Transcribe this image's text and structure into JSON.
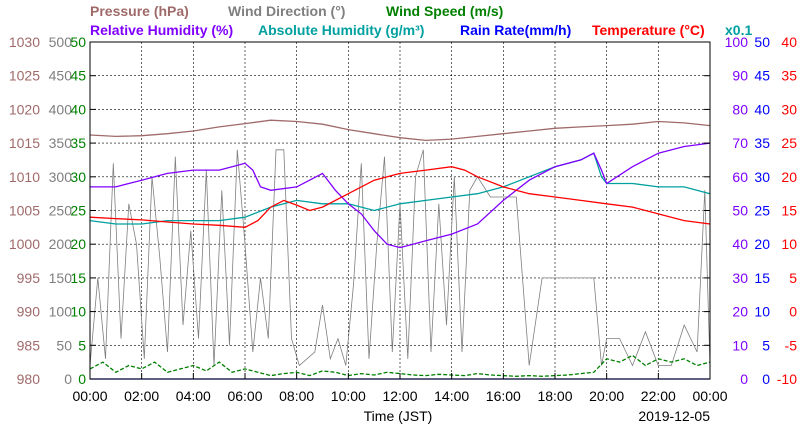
{
  "chart_data": {
    "type": "line",
    "legend": [
      {
        "key": "pressure",
        "label": "Pressure (hPa)",
        "color": "#a06a6a"
      },
      {
        "key": "wind_dir",
        "label": "Wind Direction (°)",
        "color": "#7f7f7f"
      },
      {
        "key": "wind_speed",
        "label": "Wind Speed (m/s)",
        "color": "#008000"
      },
      {
        "key": "rh",
        "label": "Relative Humidity (%)",
        "color": "#8000ff"
      },
      {
        "key": "ah",
        "label": "Absolute Humidity (g/m³)",
        "color": "#00a0a0"
      },
      {
        "key": "rain",
        "label": "Rain Rate(mm/h)",
        "color": "#0000ff"
      },
      {
        "key": "temp",
        "label": "Temperature (°C)",
        "color": "#ff0000"
      }
    ],
    "x_ticks": [
      "00:00",
      "02:00",
      "04:00",
      "06:00",
      "08:00",
      "10:00",
      "12:00",
      "14:00",
      "16:00",
      "18:00",
      "20:00",
      "22:00",
      "00:00"
    ],
    "xlabel": "Time (JST)",
    "date": "2019-12-05",
    "ah_multiplier": "x0.1",
    "x_range_hours": [
      0,
      24
    ],
    "grid": true,
    "axes": {
      "pressure": {
        "min": 980,
        "max": 1030,
        "ticks": [
          "1030",
          "1025",
          "1020",
          "1015",
          "1010",
          "1005",
          "1000",
          "995",
          "990",
          "985",
          "980"
        ],
        "color": "#a06a6a"
      },
      "wind_dir": {
        "min": 0,
        "max": 500,
        "ticks": [
          "500",
          "450",
          "400",
          "350",
          "300",
          "250",
          "200",
          "150",
          "100",
          "50",
          "0"
        ],
        "color": "#7f7f7f"
      },
      "wind_speed": {
        "min": 0,
        "max": 50,
        "ticks": [
          "50",
          "45",
          "40",
          "35",
          "30",
          "25",
          "20",
          "15",
          "10",
          "5",
          "0"
        ],
        "color": "#008000"
      },
      "rh": {
        "min": 0,
        "max": 100,
        "ticks": [
          "100",
          "90",
          "80",
          "70",
          "60",
          "50",
          "40",
          "30",
          "20",
          "10",
          "0"
        ],
        "color": "#8000ff"
      },
      "rain": {
        "min": 0,
        "max": 50,
        "ticks": [
          "50",
          "45",
          "40",
          "35",
          "30",
          "25",
          "20",
          "15",
          "10",
          "5",
          "0"
        ],
        "color": "#0000ff"
      },
      "temp": {
        "min": -10,
        "max": 40,
        "ticks": [
          "40",
          "35",
          "30",
          "25",
          "20",
          "15",
          "10",
          "5",
          "0",
          "-5",
          "-10"
        ],
        "color": "#ff0000"
      }
    },
    "series": [
      {
        "key": "pressure",
        "name": "Pressure (hPa)",
        "color": "#a06a6a",
        "x": [
          0,
          1,
          2,
          3,
          4,
          5,
          6,
          7,
          8,
          9,
          10,
          11,
          12,
          13,
          14,
          15,
          16,
          17,
          18,
          19,
          20,
          21,
          22,
          23,
          24
        ],
        "y": [
          1016.2,
          1016.0,
          1016.1,
          1016.4,
          1016.8,
          1017.4,
          1017.9,
          1018.4,
          1018.2,
          1017.8,
          1017.0,
          1016.4,
          1015.8,
          1015.4,
          1015.6,
          1016.0,
          1016.4,
          1016.8,
          1017.2,
          1017.4,
          1017.6,
          1017.8,
          1018.2,
          1018.0,
          1017.6
        ]
      },
      {
        "key": "rh",
        "name": "Relative Humidity (%)",
        "color": "#8000ff",
        "x": [
          0,
          1,
          1.5,
          2,
          2.5,
          3,
          4,
          5,
          5.5,
          6,
          6.3,
          6.6,
          7,
          8,
          8.5,
          9,
          9.5,
          10,
          10.5,
          11,
          11.5,
          12,
          12.5,
          13,
          14,
          15,
          16,
          17,
          18,
          19,
          19.5,
          19.8,
          20,
          21,
          22,
          23,
          24
        ],
        "y": [
          57,
          57,
          58,
          59,
          60,
          61,
          62,
          62,
          63,
          64,
          62,
          57,
          56,
          57,
          59,
          61,
          56,
          52,
          49,
          44,
          40,
          39,
          40,
          41,
          43,
          46,
          53,
          59,
          63,
          65,
          67,
          62,
          58,
          63,
          67,
          69,
          70
        ]
      },
      {
        "key": "ah",
        "name": "Absolute Humidity (g/m³)",
        "color": "#00a0a0",
        "x": [
          0,
          1,
          2,
          3,
          4,
          5,
          6,
          7,
          8,
          9,
          10,
          11,
          12,
          13,
          14,
          15,
          16,
          17,
          18,
          19,
          19.5,
          19.8,
          20,
          21,
          22,
          23,
          24
        ],
        "y": [
          4.7,
          4.6,
          4.6,
          4.7,
          4.7,
          4.7,
          4.8,
          5.1,
          5.3,
          5.2,
          5.2,
          5.0,
          5.2,
          5.3,
          5.4,
          5.5,
          5.7,
          6.0,
          6.3,
          6.5,
          6.7,
          6.0,
          5.8,
          5.8,
          5.7,
          5.7,
          5.5
        ]
      },
      {
        "key": "temp",
        "name": "Temperature (°C)",
        "color": "#ff0000",
        "x": [
          0,
          1,
          2,
          3,
          4,
          5,
          6,
          6.5,
          7,
          7.5,
          8,
          8.5,
          9,
          10,
          11,
          12,
          13,
          14,
          14.5,
          15,
          16,
          17,
          18,
          19,
          20,
          21,
          22,
          23,
          24
        ],
        "y": [
          14.0,
          13.8,
          13.6,
          13.3,
          13.0,
          12.8,
          12.5,
          13.5,
          15.5,
          16.5,
          15.8,
          15.0,
          15.5,
          17.5,
          19.5,
          20.5,
          21.0,
          21.5,
          21.0,
          20.0,
          18.5,
          17.5,
          17.0,
          16.5,
          16.0,
          15.5,
          14.5,
          13.5,
          13.0
        ]
      },
      {
        "key": "wind_dir",
        "name": "Wind Direction (°)",
        "color": "#7f7f7f",
        "x": [
          0,
          0.3,
          0.6,
          0.9,
          1.2,
          1.5,
          1.8,
          2.1,
          2.4,
          2.7,
          3.0,
          3.3,
          3.6,
          3.9,
          4.2,
          4.5,
          4.8,
          5.1,
          5.4,
          5.7,
          6.0,
          6.3,
          6.6,
          6.9,
          7.2,
          7.5,
          7.8,
          8.1,
          8.4,
          8.7,
          9.0,
          9.3,
          9.6,
          9.9,
          10.2,
          10.5,
          10.8,
          11.1,
          11.4,
          11.7,
          12.0,
          12.3,
          12.6,
          12.9,
          13.2,
          13.5,
          13.8,
          14.1,
          14.4,
          14.7,
          15.0,
          15.5,
          16.0,
          16.5,
          17.0,
          17.5,
          18.0,
          18.5,
          19.0,
          19.5,
          19.8,
          20.0,
          20.5,
          21.0,
          21.5,
          22.0,
          22.5,
          23.0,
          23.5,
          23.8,
          24
        ],
        "y": [
          20,
          150,
          30,
          320,
          60,
          260,
          200,
          30,
          300,
          180,
          40,
          330,
          80,
          220,
          60,
          310,
          20,
          280,
          50,
          340,
          200,
          40,
          150,
          60,
          340,
          340,
          60,
          20,
          30,
          40,
          110,
          30,
          60,
          20,
          140,
          320,
          30,
          200,
          330,
          40,
          260,
          30,
          300,
          340,
          40,
          260,
          80,
          300,
          40,
          280,
          300,
          270,
          270,
          270,
          20,
          150,
          150,
          150,
          150,
          150,
          20,
          60,
          60,
          20,
          70,
          20,
          20,
          80,
          40,
          280,
          20
        ]
      },
      {
        "key": "wind_speed",
        "name": "Wind Speed (m/s)",
        "color": "#008000",
        "x": [
          0,
          0.5,
          1,
          1.5,
          2,
          2.5,
          3,
          3.5,
          4,
          4.5,
          5,
          5.5,
          6,
          6.5,
          7,
          7.5,
          8,
          8.5,
          9,
          9.5,
          10,
          10.5,
          11,
          11.5,
          12,
          12.5,
          13,
          13.5,
          14,
          14.5,
          15,
          15.5,
          16,
          16.5,
          17,
          17.5,
          18,
          18.5,
          19,
          19.5,
          20,
          20.5,
          21,
          21.5,
          22,
          22.5,
          23,
          23.5,
          24
        ],
        "y": [
          1.5,
          2.5,
          1.0,
          2.0,
          1.5,
          2.5,
          1.0,
          1.5,
          2.0,
          1.2,
          2.5,
          1.0,
          1.5,
          1.0,
          0.5,
          0.8,
          1.0,
          0.5,
          1.2,
          1.0,
          0.5,
          0.8,
          0.6,
          1.0,
          0.8,
          0.6,
          0.5,
          0.7,
          0.6,
          0.5,
          0.8,
          0.6,
          0.5,
          0.4,
          0.5,
          0.4,
          0.5,
          0.6,
          0.8,
          1.0,
          3.0,
          2.5,
          3.5,
          2.0,
          3.0,
          2.5,
          3.0,
          2.0,
          2.5
        ]
      },
      {
        "key": "rain",
        "name": "Rain Rate(mm/h)",
        "color": "#0000ff",
        "x": [
          0,
          24
        ],
        "y": [
          0,
          0
        ]
      }
    ]
  }
}
